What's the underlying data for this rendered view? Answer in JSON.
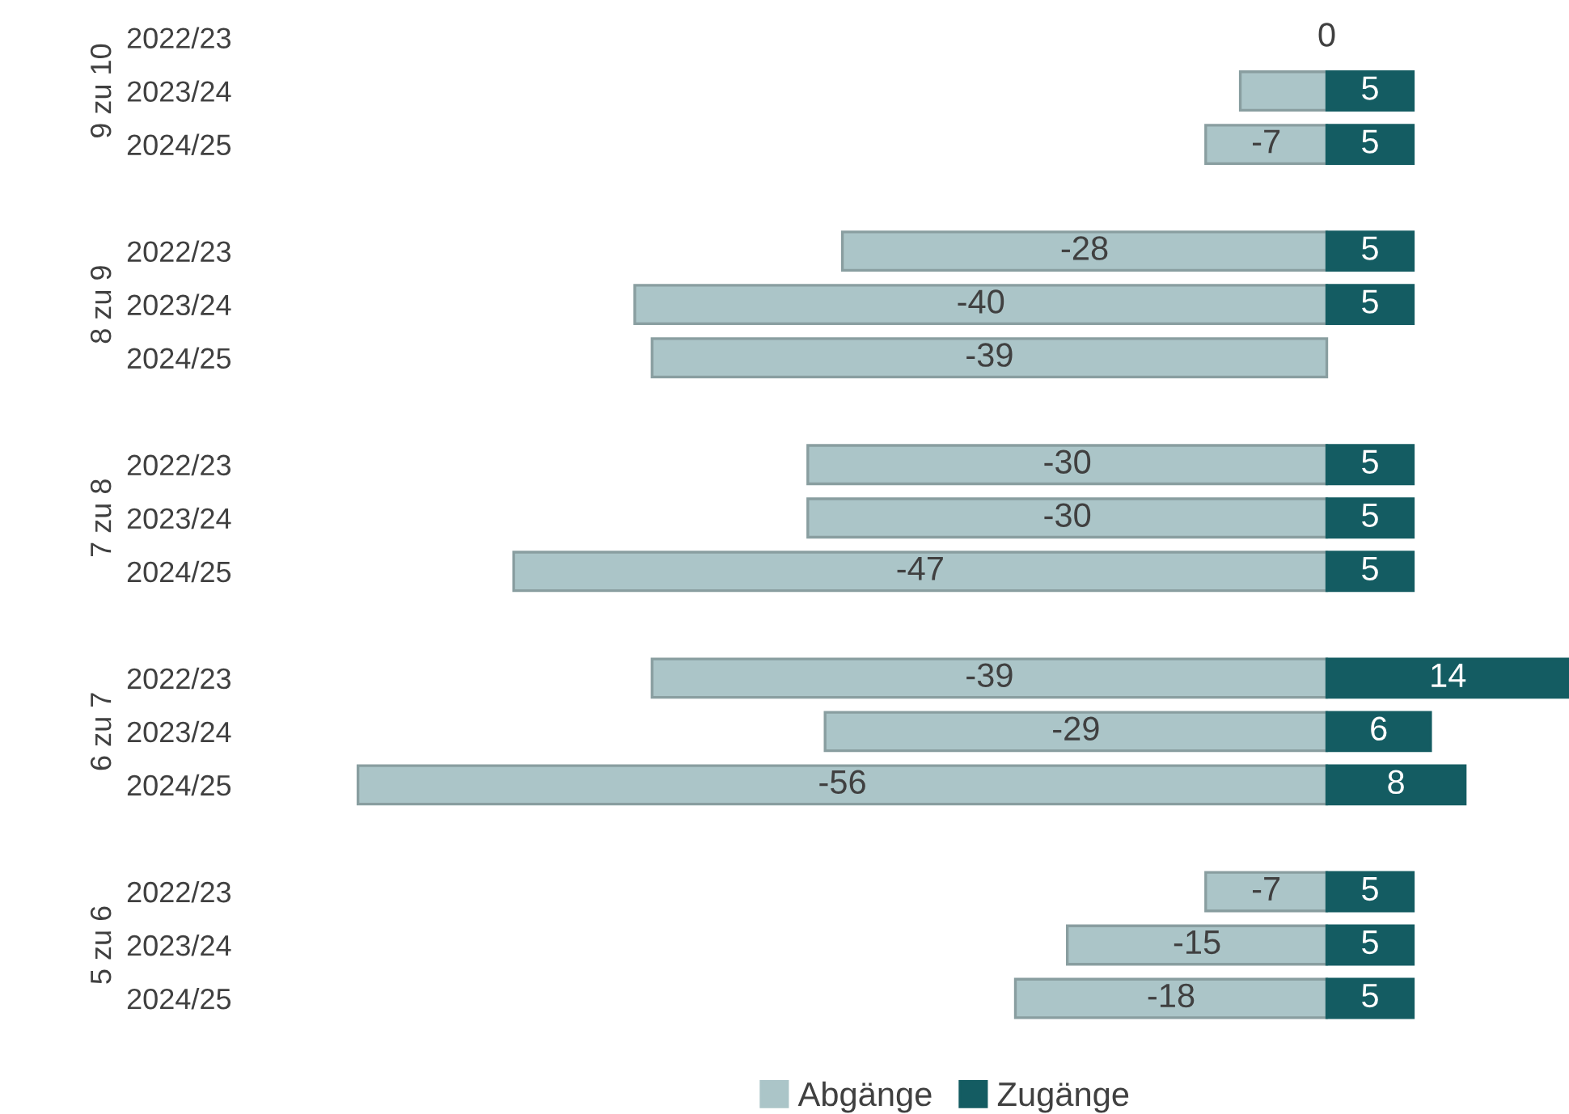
{
  "chart_data": {
    "type": "bar",
    "orientation": "horizontal",
    "stacked": true,
    "legend": "bottom",
    "grid": false,
    "categories": [
      "2022/23",
      "2023/24",
      "2024/25",
      "2022/23",
      "2023/24",
      "2024/25",
      "2022/23",
      "2023/24",
      "2024/25",
      "2022/23",
      "2023/24",
      "2024/25",
      "2022/23",
      "2023/24",
      "2024/25"
    ],
    "annotations": [
      "9 zu 10",
      "8 zu 9",
      "7 zu 8",
      "6 zu 7",
      "5 zu 6"
    ],
    "series": [
      {
        "name": "Abgänge",
        "color": "#abc5c8",
        "values": [
          0,
          -5,
          -7,
          -28,
          -40,
          -39,
          -30,
          -30,
          -47,
          -39,
          -29,
          -56,
          -7,
          -15,
          -18
        ],
        "value_labels": [
          "0",
          null,
          "-7",
          "-28",
          "-40",
          "-39",
          "-30",
          "-30",
          "-47",
          "-39",
          "-29",
          "-56",
          "-7",
          "-15",
          "-18"
        ]
      },
      {
        "name": "Zugänge",
        "color": "#145c62",
        "values": [
          null,
          5,
          5,
          5,
          5,
          null,
          5,
          5,
          5,
          14,
          6,
          8,
          5,
          5,
          5
        ],
        "value_labels": [
          null,
          "5",
          "5",
          "5",
          "5",
          null,
          "5",
          "5",
          "5",
          "14",
          "6",
          "8",
          "5",
          "5",
          "5"
        ]
      }
    ]
  }
}
